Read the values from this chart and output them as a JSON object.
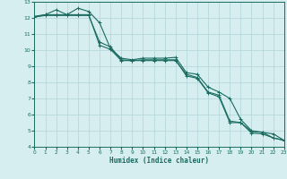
{
  "xlabel": "Humidex (Indice chaleur)",
  "ylabel": "",
  "xlim": [
    0,
    23
  ],
  "ylim": [
    4,
    13
  ],
  "yticks": [
    4,
    5,
    6,
    7,
    8,
    9,
    10,
    11,
    12,
    13
  ],
  "xticks": [
    0,
    1,
    2,
    3,
    4,
    5,
    6,
    7,
    8,
    9,
    10,
    11,
    12,
    13,
    14,
    15,
    16,
    17,
    18,
    19,
    20,
    21,
    22,
    23
  ],
  "background_color": "#d6eef0",
  "grid_color": "#b0d4d8",
  "line_color": "#1a6b60",
  "line1_x": [
    0,
    1,
    2,
    3,
    4,
    5,
    6,
    7,
    8,
    9,
    10,
    11,
    12,
    13,
    14,
    15,
    16,
    17,
    18,
    19,
    20,
    21,
    22,
    23
  ],
  "line1_y": [
    12.1,
    12.2,
    12.5,
    12.2,
    12.6,
    12.4,
    11.7,
    10.1,
    9.5,
    9.4,
    9.5,
    9.5,
    9.5,
    9.55,
    8.6,
    8.5,
    7.7,
    7.4,
    7.0,
    5.7,
    5.0,
    4.9,
    4.8,
    4.4
  ],
  "line2_x": [
    0,
    1,
    2,
    3,
    4,
    5,
    6,
    7,
    8,
    9,
    10,
    11,
    12,
    13,
    14,
    15,
    16,
    17,
    18,
    19,
    20,
    21,
    22,
    23
  ],
  "line2_y": [
    12.05,
    12.2,
    12.2,
    12.2,
    12.2,
    12.2,
    10.3,
    10.05,
    9.35,
    9.35,
    9.35,
    9.35,
    9.35,
    9.35,
    8.5,
    8.3,
    7.4,
    7.2,
    5.6,
    5.5,
    4.95,
    4.9,
    4.55,
    4.4
  ],
  "line3_x": [
    0,
    1,
    2,
    3,
    4,
    5,
    6,
    7,
    8,
    9,
    10,
    11,
    12,
    13,
    14,
    15,
    16,
    17,
    18,
    19,
    20,
    21,
    22,
    23
  ],
  "line3_y": [
    12.05,
    12.15,
    12.15,
    12.15,
    12.15,
    12.15,
    10.5,
    10.2,
    9.4,
    9.35,
    9.4,
    9.4,
    9.4,
    9.4,
    8.4,
    8.25,
    7.35,
    7.1,
    5.5,
    5.5,
    4.85,
    4.8,
    4.55,
    4.4
  ]
}
